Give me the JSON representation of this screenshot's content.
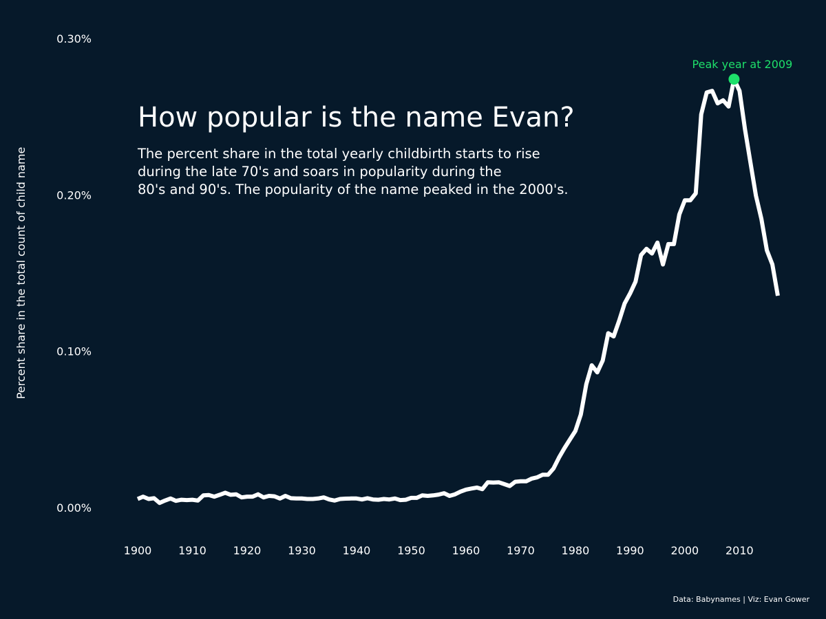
{
  "chart_data": {
    "type": "line",
    "title": "How popular is the name Evan?",
    "subtitle_lines": [
      "The percent share in the total yearly childbirth starts to rise",
      "during the late 70's and soars in popularity during the",
      "80's and 90's. The popularity of the name peaked in the 2000's."
    ],
    "ylabel": "Percent share in the total count of child name",
    "xlabel": "",
    "caption": "Data: Babynames | Viz: Evan Gower",
    "xlim": [
      1900,
      2017
    ],
    "ylim": [
      0,
      0.3
    ],
    "x_ticks": [
      1900,
      1910,
      1920,
      1930,
      1940,
      1950,
      1960,
      1970,
      1980,
      1990,
      2000,
      2010
    ],
    "y_ticks": [
      {
        "value": 0.0,
        "label": "0.00%"
      },
      {
        "value": 0.1,
        "label": "0.10%"
      },
      {
        "value": 0.2,
        "label": "0.20%"
      },
      {
        "value": 0.3,
        "label": "0.30%"
      }
    ],
    "line_color": "#ffffff",
    "annotation": {
      "x": 2009,
      "y": 0.274,
      "label": "Peak year at 2009",
      "color": "#1ee06a"
    },
    "series": [
      {
        "x": [
          1900,
          1901,
          1902,
          1903,
          1904,
          1905,
          1906,
          1907,
          1908,
          1909,
          1910,
          1911,
          1912,
          1913,
          1914,
          1915,
          1916,
          1917,
          1918,
          1919,
          1920,
          1921,
          1922,
          1923,
          1924,
          1925,
          1926,
          1927,
          1928,
          1929,
          1930,
          1931,
          1932,
          1933,
          1934,
          1935,
          1936,
          1937,
          1938,
          1939,
          1940,
          1941,
          1942,
          1943,
          1944,
          1945,
          1946,
          1947,
          1948,
          1949,
          1950,
          1951,
          1952,
          1953,
          1954,
          1955,
          1956,
          1957,
          1958,
          1959,
          1960,
          1961,
          1962,
          1963,
          1964,
          1965,
          1966,
          1967,
          1968,
          1969,
          1970,
          1971,
          1972,
          1973,
          1974,
          1975,
          1976,
          1977,
          1978,
          1979,
          1980,
          1981,
          1982,
          1983,
          1984,
          1985,
          1986,
          1987,
          1988,
          1989,
          1990,
          1991,
          1992,
          1993,
          1994,
          1995,
          1996,
          1997,
          1998,
          1999,
          2000,
          2001,
          2002,
          2003,
          2004,
          2005,
          2006,
          2007,
          2008,
          2009,
          2010,
          2011,
          2012,
          2013,
          2014,
          2015,
          2016,
          2017
        ],
        "values": [
          0.0055,
          0.007,
          0.0055,
          0.006,
          0.003,
          0.0045,
          0.0058,
          0.0043,
          0.005,
          0.0048,
          0.005,
          0.0045,
          0.0078,
          0.008,
          0.007,
          0.0082,
          0.0095,
          0.0082,
          0.0085,
          0.0065,
          0.007,
          0.007,
          0.0085,
          0.0065,
          0.0075,
          0.0072,
          0.0058,
          0.0075,
          0.006,
          0.0058,
          0.0058,
          0.0055,
          0.0055,
          0.0058,
          0.0065,
          0.0052,
          0.0045,
          0.0055,
          0.0057,
          0.0058,
          0.0058,
          0.0052,
          0.006,
          0.0052,
          0.005,
          0.0055,
          0.0052,
          0.0058,
          0.0048,
          0.005,
          0.0062,
          0.0062,
          0.0078,
          0.0075,
          0.0078,
          0.0083,
          0.0092,
          0.0075,
          0.0085,
          0.0102,
          0.0115,
          0.0122,
          0.0128,
          0.0118,
          0.0162,
          0.016,
          0.0162,
          0.015,
          0.0138,
          0.0165,
          0.0168,
          0.0168,
          0.0185,
          0.0193,
          0.021,
          0.021,
          0.025,
          0.032,
          0.038,
          0.0435,
          0.049,
          0.0595,
          0.079,
          0.091,
          0.0865,
          0.094,
          0.1115,
          0.1095,
          0.1195,
          0.1305,
          0.137,
          0.1445,
          0.1615,
          0.1655,
          0.1625,
          0.1695,
          0.1555,
          0.1685,
          0.1685,
          0.1875,
          0.1965,
          0.1965,
          0.201,
          0.2515,
          0.2655,
          0.2665,
          0.2585,
          0.2605,
          0.2565,
          0.274,
          0.2665,
          0.242,
          0.2205,
          0.1995,
          0.1845,
          0.1645,
          0.1555,
          0.1355
        ]
      }
    ]
  }
}
